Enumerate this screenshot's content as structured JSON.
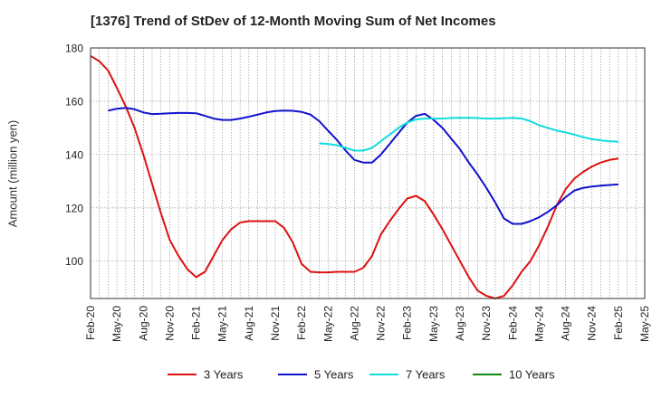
{
  "chart_data": {
    "type": "line",
    "title": "[1376]  Trend of StDev of 12-Month Moving Sum of Net Incomes",
    "xlabel": "",
    "ylabel": "Amount (million yen)",
    "ylim": [
      86,
      180
    ],
    "yticks": [
      100,
      120,
      140,
      160,
      180
    ],
    "x_start": "2020-02",
    "xticks": [
      "Feb-20",
      "May-20",
      "Aug-20",
      "Nov-20",
      "Feb-21",
      "May-21",
      "Aug-21",
      "Nov-21",
      "Feb-22",
      "May-22",
      "Aug-22",
      "Nov-22",
      "Feb-23",
      "May-23",
      "Aug-23",
      "Nov-23",
      "Feb-24",
      "May-24",
      "Aug-24",
      "Nov-24",
      "Feb-25",
      "May-25"
    ],
    "grid": true,
    "legend_position": "bottom",
    "series": [
      {
        "name": "3 Years",
        "color": "#dd1111",
        "points": [
          [
            "2020-02",
            177
          ],
          [
            "2020-03",
            175
          ],
          [
            "2020-04",
            171.5
          ],
          [
            "2020-05",
            165
          ],
          [
            "2020-06",
            158
          ],
          [
            "2020-07",
            150
          ],
          [
            "2020-08",
            140
          ],
          [
            "2020-09",
            129
          ],
          [
            "2020-10",
            118
          ],
          [
            "2020-11",
            108
          ],
          [
            "2020-12",
            102
          ],
          [
            "2021-01",
            97
          ],
          [
            "2021-02",
            94
          ],
          [
            "2021-03",
            96
          ],
          [
            "2021-04",
            102
          ],
          [
            "2021-05",
            108
          ],
          [
            "2021-06",
            112
          ],
          [
            "2021-07",
            114.5
          ],
          [
            "2021-08",
            115
          ],
          [
            "2021-09",
            115
          ],
          [
            "2021-10",
            115
          ],
          [
            "2021-11",
            115
          ],
          [
            "2021-12",
            112.5
          ],
          [
            "2022-01",
            107
          ],
          [
            "2022-02",
            99
          ],
          [
            "2022-03",
            96
          ],
          [
            "2022-04",
            95.8
          ],
          [
            "2022-05",
            95.8
          ],
          [
            "2022-06",
            96
          ],
          [
            "2022-07",
            96
          ],
          [
            "2022-08",
            96
          ],
          [
            "2022-09",
            97.5
          ],
          [
            "2022-10",
            102
          ],
          [
            "2022-11",
            110
          ],
          [
            "2022-12",
            115
          ],
          [
            "2023-01",
            119.5
          ],
          [
            "2023-02",
            123.5
          ],
          [
            "2023-03",
            124.5
          ],
          [
            "2023-04",
            122.5
          ],
          [
            "2023-05",
            117.5
          ],
          [
            "2023-06",
            112
          ],
          [
            "2023-07",
            106
          ],
          [
            "2023-08",
            100
          ],
          [
            "2023-09",
            94
          ],
          [
            "2023-10",
            89
          ],
          [
            "2023-11",
            87
          ],
          [
            "2023-12",
            86
          ],
          [
            "2024-01",
            87
          ],
          [
            "2024-02",
            91
          ],
          [
            "2024-03",
            96
          ],
          [
            "2024-04",
            100
          ],
          [
            "2024-05",
            106
          ],
          [
            "2024-06",
            113
          ],
          [
            "2024-07",
            121
          ],
          [
            "2024-08",
            127
          ],
          [
            "2024-09",
            131
          ],
          [
            "2024-10",
            133.5
          ],
          [
            "2024-11",
            135.5
          ],
          [
            "2024-12",
            137
          ],
          [
            "2025-01",
            138
          ],
          [
            "2025-02",
            138.5
          ]
        ]
      },
      {
        "name": "5 Years",
        "color": "#1111cc",
        "points": [
          [
            "2020-04",
            156.5
          ],
          [
            "2020-05",
            157.2
          ],
          [
            "2020-06",
            157.5
          ],
          [
            "2020-07",
            157
          ],
          [
            "2020-08",
            155.8
          ],
          [
            "2020-09",
            155.2
          ],
          [
            "2020-10",
            155.3
          ],
          [
            "2020-11",
            155.5
          ],
          [
            "2020-12",
            155.6
          ],
          [
            "2021-01",
            155.6
          ],
          [
            "2021-02",
            155.5
          ],
          [
            "2021-03",
            154.5
          ],
          [
            "2021-04",
            153.5
          ],
          [
            "2021-05",
            153
          ],
          [
            "2021-06",
            153
          ],
          [
            "2021-07",
            153.5
          ],
          [
            "2021-08",
            154.2
          ],
          [
            "2021-09",
            155
          ],
          [
            "2021-10",
            155.8
          ],
          [
            "2021-11",
            156.3
          ],
          [
            "2021-12",
            156.5
          ],
          [
            "2022-01",
            156.4
          ],
          [
            "2022-02",
            156
          ],
          [
            "2022-03",
            155
          ],
          [
            "2022-04",
            152.5
          ],
          [
            "2022-05",
            149
          ],
          [
            "2022-06",
            145.5
          ],
          [
            "2022-07",
            141.5
          ],
          [
            "2022-08",
            138
          ],
          [
            "2022-09",
            137
          ],
          [
            "2022-10",
            137
          ],
          [
            "2022-11",
            140
          ],
          [
            "2022-12",
            144
          ],
          [
            "2023-01",
            148
          ],
          [
            "2023-02",
            152
          ],
          [
            "2023-03",
            154.5
          ],
          [
            "2023-04",
            155.3
          ],
          [
            "2023-05",
            153
          ],
          [
            "2023-06",
            150
          ],
          [
            "2023-07",
            146
          ],
          [
            "2023-08",
            142
          ],
          [
            "2023-09",
            137
          ],
          [
            "2023-10",
            132.5
          ],
          [
            "2023-11",
            127.5
          ],
          [
            "2023-12",
            122
          ],
          [
            "2024-01",
            116
          ],
          [
            "2024-02",
            114
          ],
          [
            "2024-03",
            114
          ],
          [
            "2024-04",
            115
          ],
          [
            "2024-05",
            116.5
          ],
          [
            "2024-06",
            118.5
          ],
          [
            "2024-07",
            121
          ],
          [
            "2024-08",
            124
          ],
          [
            "2024-09",
            126.5
          ],
          [
            "2024-10",
            127.5
          ],
          [
            "2024-11",
            128
          ],
          [
            "2024-12",
            128.3
          ],
          [
            "2025-01",
            128.6
          ],
          [
            "2025-02",
            128.8
          ]
        ]
      },
      {
        "name": "7 Years",
        "color": "#11dddd",
        "points": [
          [
            "2022-04",
            144.2
          ],
          [
            "2022-05",
            144
          ],
          [
            "2022-06",
            143.5
          ],
          [
            "2022-07",
            142.5
          ],
          [
            "2022-08",
            141.5
          ],
          [
            "2022-09",
            141.5
          ],
          [
            "2022-10",
            142.5
          ],
          [
            "2022-11",
            145
          ],
          [
            "2022-12",
            147.5
          ],
          [
            "2023-01",
            150
          ],
          [
            "2023-02",
            152
          ],
          [
            "2023-03",
            153.2
          ],
          [
            "2023-04",
            153.5
          ],
          [
            "2023-05",
            153.5
          ],
          [
            "2023-06",
            153.5
          ],
          [
            "2023-07",
            153.7
          ],
          [
            "2023-08",
            153.8
          ],
          [
            "2023-09",
            153.8
          ],
          [
            "2023-10",
            153.7
          ],
          [
            "2023-11",
            153.5
          ],
          [
            "2023-12",
            153.5
          ],
          [
            "2024-01",
            153.6
          ],
          [
            "2024-02",
            153.8
          ],
          [
            "2024-03",
            153.5
          ],
          [
            "2024-04",
            152.5
          ],
          [
            "2024-05",
            151
          ],
          [
            "2024-06",
            150
          ],
          [
            "2024-07",
            149
          ],
          [
            "2024-08",
            148.3
          ],
          [
            "2024-09",
            147.5
          ],
          [
            "2024-10",
            146.5
          ],
          [
            "2024-11",
            145.8
          ],
          [
            "2024-12",
            145.3
          ],
          [
            "2025-01",
            145
          ],
          [
            "2025-02",
            144.8
          ]
        ]
      },
      {
        "name": "10 Years",
        "color": "#118811",
        "points": []
      }
    ]
  }
}
